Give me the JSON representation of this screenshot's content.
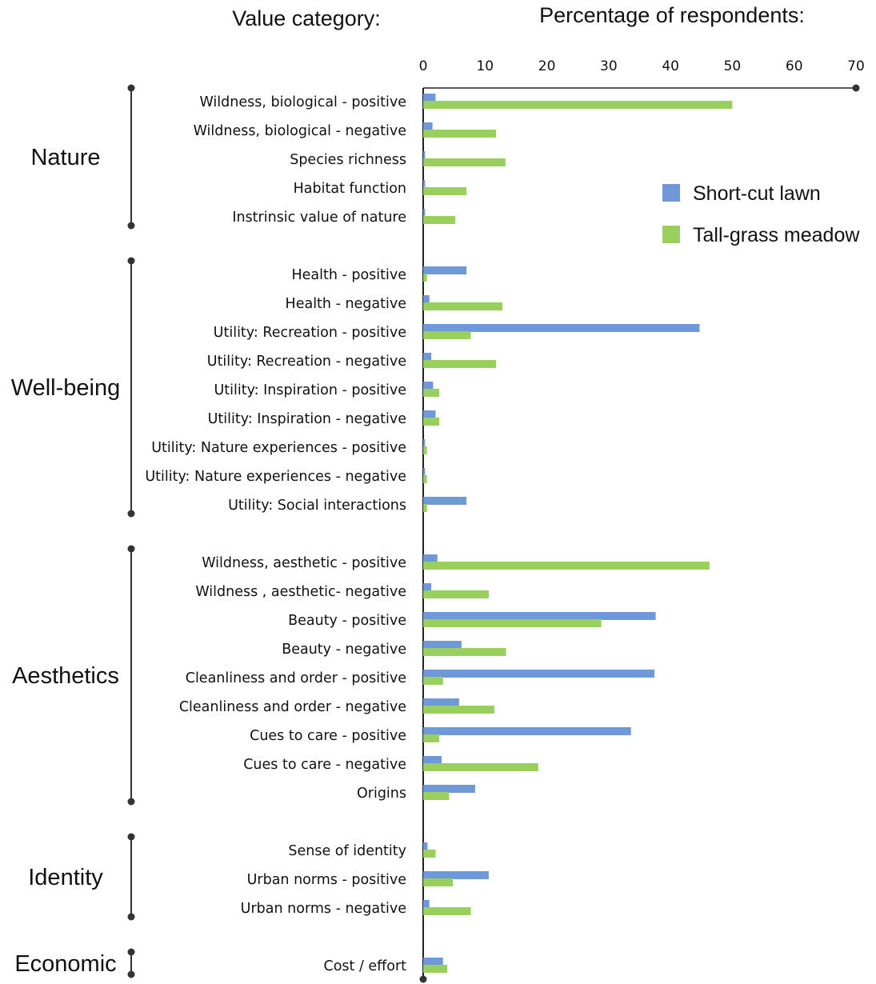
{
  "chart_data": {
    "type": "bar",
    "orientation": "horizontal",
    "category_header": "Value category:",
    "axis_title": "Percentage of respondents:",
    "xlim": [
      0,
      70
    ],
    "ticks": [
      0,
      10,
      20,
      30,
      40,
      50,
      60,
      70
    ],
    "grid": false,
    "legend_position": "right",
    "series": [
      {
        "name": "Short-cut lawn",
        "color": "#6f98d8"
      },
      {
        "name": "Tall-grass meadow",
        "color": "#98cf5d"
      }
    ],
    "groups": [
      {
        "name": "Nature",
        "categories": [
          {
            "label": "Wildness, biological - positive",
            "values": [
              2,
              50
            ]
          },
          {
            "label": "Wildness, biological - negative",
            "values": [
              1.5,
              11.8
            ]
          },
          {
            "label": "Species richness",
            "values": [
              0.3,
              13.3
            ]
          },
          {
            "label": "Habitat function",
            "values": [
              0.3,
              7
            ]
          },
          {
            "label": "Instrinsic value of nature",
            "values": [
              0.3,
              5.2
            ]
          }
        ]
      },
      {
        "name": "Well-being",
        "categories": [
          {
            "label": "Health - positive",
            "values": [
              7,
              0.6
            ]
          },
          {
            "label": "Health - negative",
            "values": [
              1,
              12.8
            ]
          },
          {
            "label": "Utility: Recreation - positive",
            "values": [
              44.7,
              7.7
            ]
          },
          {
            "label": "Utility: Recreation - negative",
            "values": [
              1.3,
              11.8
            ]
          },
          {
            "label": "Utility: Inspiration - positive",
            "values": [
              1.6,
              2.6
            ]
          },
          {
            "label": "Utility: Inspiration - negative",
            "values": [
              2,
              2.6
            ]
          },
          {
            "label": "Utility: Nature experiences - positive",
            "values": [
              0.3,
              0.6
            ]
          },
          {
            "label": "Utility: Nature experiences - negative",
            "values": [
              0.3,
              0.6
            ]
          },
          {
            "label": "Utility: Social interactions",
            "values": [
              7,
              0.6
            ]
          }
        ]
      },
      {
        "name": "Aesthetics",
        "categories": [
          {
            "label": "Wildness, aesthetic - positive",
            "values": [
              2.3,
              46.3
            ]
          },
          {
            "label": "Wildness , aesthetic- negative",
            "values": [
              1.3,
              10.6
            ]
          },
          {
            "label": "Beauty - positive",
            "values": [
              37.6,
              28.8
            ]
          },
          {
            "label": "Beauty - negative",
            "values": [
              6.2,
              13.4
            ]
          },
          {
            "label": "Cleanliness and order - positive",
            "values": [
              37.4,
              3.2
            ]
          },
          {
            "label": "Cleanliness and order - negative",
            "values": [
              5.8,
              11.5
            ]
          },
          {
            "label": "Cues to care - positive",
            "values": [
              33.6,
              2.6
            ]
          },
          {
            "label": "Cues to care - negative",
            "values": [
              3,
              18.6
            ]
          },
          {
            "label": "Origins",
            "values": [
              8.4,
              4.2
            ]
          }
        ]
      },
      {
        "name": "Identity",
        "categories": [
          {
            "label": "Sense of identity",
            "values": [
              0.7,
              2
            ]
          },
          {
            "label": "Urban norms - positive",
            "values": [
              10.6,
              4.8
            ]
          },
          {
            "label": "Urban norms - negative",
            "values": [
              1,
              7.7
            ]
          }
        ]
      },
      {
        "name": "Economic",
        "categories": [
          {
            "label": "Cost / effort",
            "values": [
              3.2,
              3.9
            ]
          }
        ]
      }
    ]
  }
}
